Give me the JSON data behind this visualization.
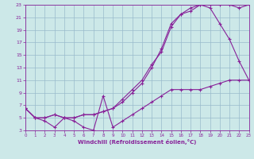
{
  "xlabel": "Windchill (Refroidissement éolien,°C)",
  "xlim": [
    0,
    23
  ],
  "ylim": [
    3,
    23
  ],
  "yticks": [
    3,
    5,
    7,
    9,
    11,
    13,
    15,
    17,
    19,
    21,
    23
  ],
  "xticks": [
    0,
    1,
    2,
    3,
    4,
    5,
    6,
    7,
    8,
    9,
    10,
    11,
    12,
    13,
    14,
    15,
    16,
    17,
    18,
    19,
    20,
    21,
    22,
    23
  ],
  "bg_color": "#cce8e8",
  "grid_color": "#99bbcc",
  "line_color": "#882299",
  "line1_x": [
    0,
    1,
    2,
    3,
    4,
    5,
    6,
    7,
    8,
    9,
    10,
    11,
    12,
    13,
    14,
    15,
    16,
    17,
    18,
    19,
    20,
    21,
    22,
    23
  ],
  "line1_y": [
    6.5,
    5.0,
    4.5,
    3.5,
    5.0,
    4.5,
    3.5,
    3.0,
    8.5,
    3.5,
    4.5,
    5.5,
    6.5,
    7.5,
    8.5,
    9.5,
    9.5,
    9.5,
    9.5,
    10.0,
    10.5,
    11.0,
    11.0,
    11.0
  ],
  "line2_x": [
    0,
    1,
    2,
    3,
    4,
    5,
    6,
    7,
    8,
    9,
    10,
    11,
    12,
    13,
    14,
    15,
    16,
    17,
    18,
    19,
    20,
    21,
    22,
    23
  ],
  "line2_y": [
    6.5,
    5.0,
    5.0,
    5.5,
    5.0,
    5.0,
    5.5,
    5.5,
    6.0,
    6.5,
    7.5,
    9.0,
    10.5,
    13.0,
    16.0,
    20.0,
    21.5,
    22.0,
    23.0,
    22.5,
    20.0,
    17.5,
    14.0,
    11.0
  ],
  "line3_x": [
    0,
    1,
    2,
    3,
    4,
    5,
    6,
    7,
    8,
    9,
    10,
    11,
    12,
    13,
    14,
    15,
    16,
    17,
    18,
    19,
    20,
    21,
    22,
    23
  ],
  "line3_y": [
    6.5,
    5.0,
    5.0,
    5.5,
    5.0,
    5.0,
    5.5,
    5.5,
    6.0,
    6.5,
    8.0,
    9.5,
    11.0,
    13.5,
    15.5,
    19.5,
    21.5,
    22.5,
    23.0,
    23.0,
    23.0,
    23.0,
    22.5,
    23.0
  ]
}
